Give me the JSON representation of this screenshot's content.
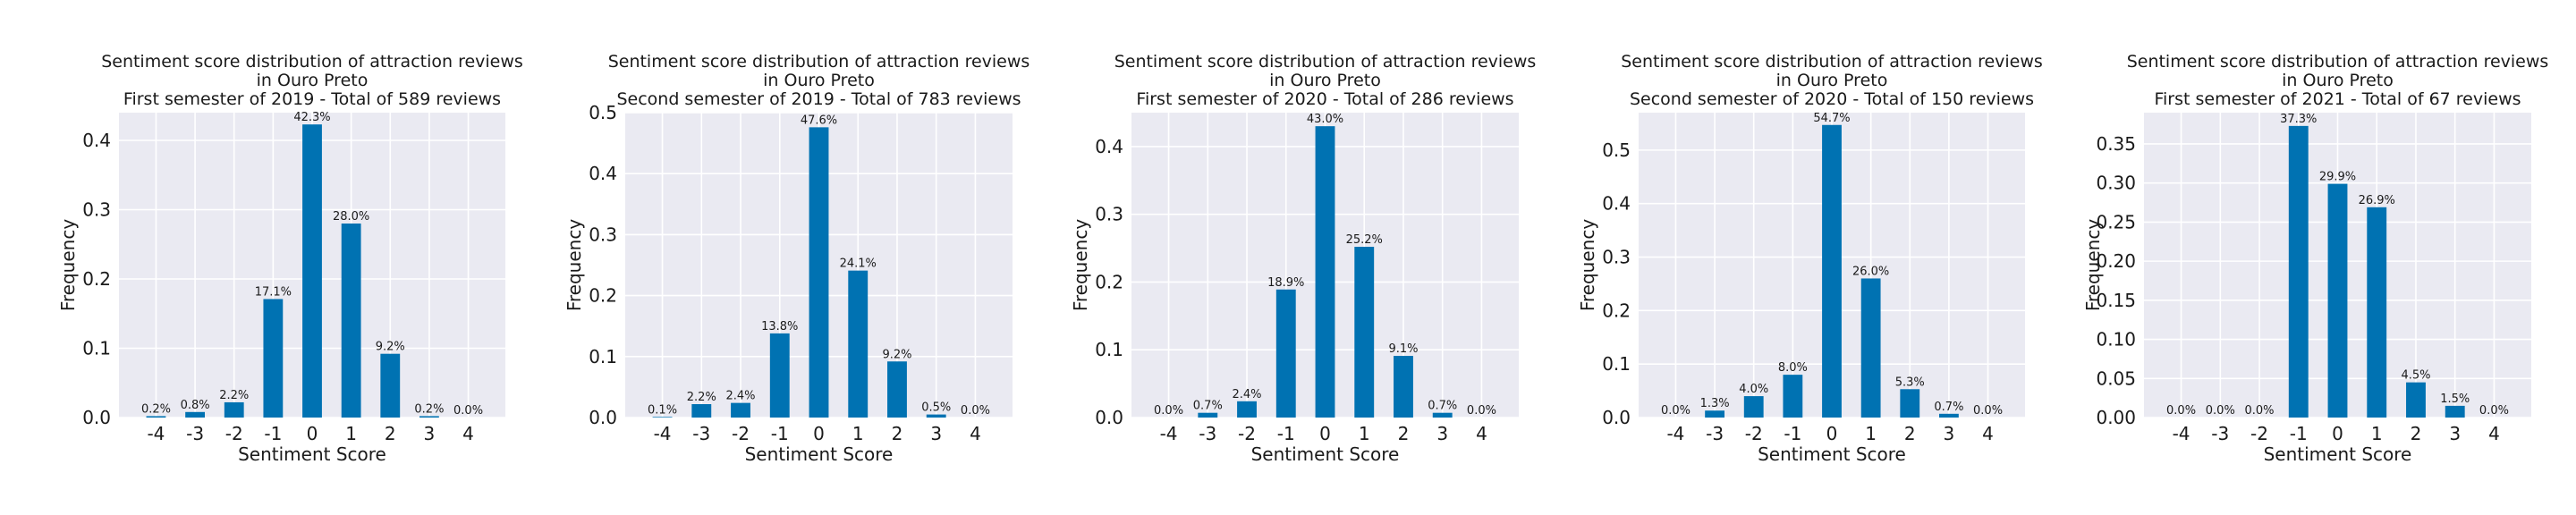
{
  "style": {
    "bar_color": "#0072b2",
    "plot_background": "#eaeaf2",
    "grid_color": "#ffffff",
    "page_background": "#ffffff"
  },
  "chart_data": [
    {
      "type": "bar",
      "title_lines": [
        "Sentiment score distribution of attraction reviews",
        "in Ouro Preto",
        "First semester of 2019 - Total of 589 reviews"
      ],
      "xlabel": "Sentiment Score",
      "ylabel": "Frequency",
      "categories": [
        "-4",
        "-3",
        "-2",
        "-1",
        "0",
        "1",
        "2",
        "3",
        "4"
      ],
      "values": [
        0.002,
        0.008,
        0.022,
        0.171,
        0.423,
        0.28,
        0.092,
        0.002,
        0.0
      ],
      "data_labels": [
        "0.2%",
        "0.8%",
        "2.2%",
        "17.1%",
        "42.3%",
        "28.0%",
        "9.2%",
        "0.2%",
        "0.0%"
      ],
      "ylim": [
        0,
        0.44
      ],
      "yticks": [
        0.0,
        0.1,
        0.2,
        0.3,
        0.4
      ],
      "ytick_labels": [
        "0.0",
        "0.1",
        "0.2",
        "0.3",
        "0.4"
      ],
      "grid": true
    },
    {
      "type": "bar",
      "title_lines": [
        "Sentiment score distribution of attraction reviews",
        "in Ouro Preto",
        "Second semester of 2019 - Total of 783 reviews"
      ],
      "xlabel": "Sentiment Score",
      "ylabel": "Frequency",
      "categories": [
        "-4",
        "-3",
        "-2",
        "-1",
        "0",
        "1",
        "2",
        "3",
        "4"
      ],
      "values": [
        0.001,
        0.022,
        0.024,
        0.138,
        0.476,
        0.241,
        0.092,
        0.005,
        0.0
      ],
      "data_labels": [
        "0.1%",
        "2.2%",
        "2.4%",
        "13.8%",
        "47.6%",
        "24.1%",
        "9.2%",
        "0.5%",
        "0.0%"
      ],
      "ylim": [
        0,
        0.5
      ],
      "yticks": [
        0.0,
        0.1,
        0.2,
        0.3,
        0.4,
        0.5
      ],
      "ytick_labels": [
        "0.0",
        "0.1",
        "0.2",
        "0.3",
        "0.4",
        "0.5"
      ],
      "grid": true
    },
    {
      "type": "bar",
      "title_lines": [
        "Sentiment score distribution of attraction reviews",
        "in Ouro Preto",
        "First semester of 2020 - Total of 286 reviews"
      ],
      "xlabel": "Sentiment Score",
      "ylabel": "Frequency",
      "categories": [
        "-4",
        "-3",
        "-2",
        "-1",
        "0",
        "1",
        "2",
        "3",
        "4"
      ],
      "values": [
        0.0,
        0.007,
        0.024,
        0.189,
        0.43,
        0.252,
        0.091,
        0.007,
        0.0
      ],
      "data_labels": [
        "0.0%",
        "0.7%",
        "2.4%",
        "18.9%",
        "43.0%",
        "25.2%",
        "9.1%",
        "0.7%",
        "0.0%"
      ],
      "ylim": [
        0,
        0.45
      ],
      "yticks": [
        0.0,
        0.1,
        0.2,
        0.3,
        0.4
      ],
      "ytick_labels": [
        "0.0",
        "0.1",
        "0.2",
        "0.3",
        "0.4"
      ],
      "grid": true
    },
    {
      "type": "bar",
      "title_lines": [
        "Sentiment score distribution of attraction reviews",
        "in Ouro Preto",
        "Second semester of 2020 - Total of 150 reviews"
      ],
      "xlabel": "Sentiment Score",
      "ylabel": "Frequency",
      "categories": [
        "-4",
        "-3",
        "-2",
        "-1",
        "0",
        "1",
        "2",
        "3",
        "4"
      ],
      "values": [
        0.0,
        0.013,
        0.04,
        0.08,
        0.547,
        0.26,
        0.053,
        0.007,
        0.0
      ],
      "data_labels": [
        "0.0%",
        "1.3%",
        "4.0%",
        "8.0%",
        "54.7%",
        "26.0%",
        "5.3%",
        "0.7%",
        "0.0%"
      ],
      "ylim": [
        0,
        0.57
      ],
      "yticks": [
        0.0,
        0.1,
        0.2,
        0.3,
        0.4,
        0.5
      ],
      "ytick_labels": [
        "0.0",
        "0.1",
        "0.2",
        "0.3",
        "0.4",
        "0.5"
      ],
      "grid": true
    },
    {
      "type": "bar",
      "title_lines": [
        "Sentiment score distribution of attraction reviews",
        "in Ouro Preto",
        "First semester of 2021 - Total of 67 reviews"
      ],
      "xlabel": "Sentiment Score",
      "ylabel": "Frequency",
      "categories": [
        "-4",
        "-3",
        "-2",
        "-1",
        "0",
        "1",
        "2",
        "3",
        "4"
      ],
      "values": [
        0.0,
        0.0,
        0.0,
        0.373,
        0.299,
        0.269,
        0.045,
        0.015,
        0.0
      ],
      "data_labels": [
        "0.0%",
        "0.0%",
        "0.0%",
        "37.3%",
        "29.9%",
        "26.9%",
        "4.5%",
        "1.5%",
        "0.0%"
      ],
      "ylim": [
        0,
        0.39
      ],
      "yticks": [
        0.0,
        0.05,
        0.1,
        0.15,
        0.2,
        0.25,
        0.3,
        0.35
      ],
      "ytick_labels": [
        "0.00",
        "0.05",
        "0.10",
        "0.15",
        "0.20",
        "0.25",
        "0.30",
        "0.35"
      ],
      "grid": true
    }
  ]
}
